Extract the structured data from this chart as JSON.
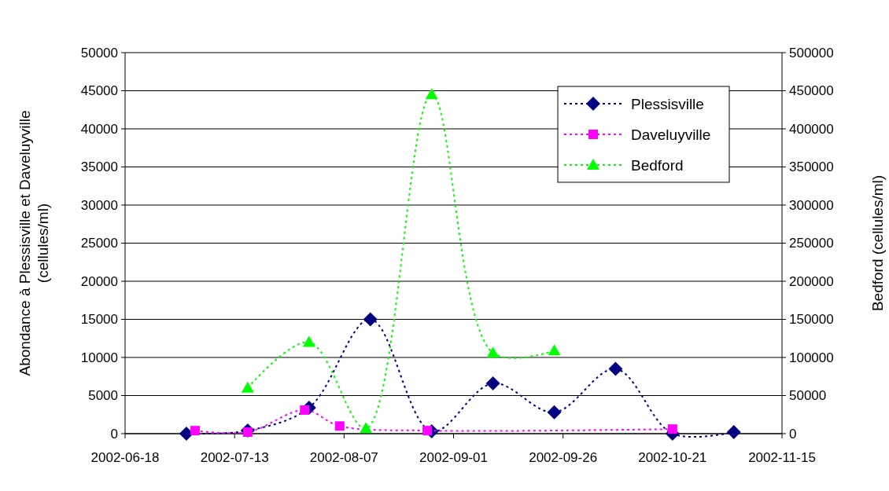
{
  "chart_data": {
    "type": "line",
    "ylabel": "Abondance à Plessisville et Daveluyville (cellules/ml)",
    "y2label": "Bedford (cellules/ml)",
    "xlim": [
      "2002-06-18",
      "2002-11-15"
    ],
    "xticks": [
      "2002-06-18",
      "2002-07-13",
      "2002-08-07",
      "2002-09-01",
      "2002-09-26",
      "2002-10-21",
      "2002-11-15"
    ],
    "ylim": [
      0,
      50000
    ],
    "yticks": [
      0,
      5000,
      10000,
      15000,
      20000,
      25000,
      30000,
      35000,
      40000,
      45000,
      50000
    ],
    "y2lim": [
      0,
      500000
    ],
    "y2ticks": [
      0,
      50000,
      100000,
      150000,
      200000,
      250000,
      300000,
      350000,
      400000,
      450000,
      500000
    ],
    "grid": "y",
    "legend": "top right",
    "line_style": "dotted",
    "series": [
      {
        "name": "Plessisville",
        "color": "#000080",
        "marker": "diamond",
        "x": [
          "2002-07-02",
          "2002-07-16",
          "2002-07-30",
          "2002-08-13",
          "2002-08-27",
          "2002-09-10",
          "2002-09-24",
          "2002-10-08",
          "2002-10-21",
          "2002-11-04"
        ],
        "values": [
          0,
          400,
          3400,
          15000,
          300,
          6600,
          2800,
          8500,
          0,
          200
        ]
      },
      {
        "name": "Daveluyville",
        "color": "#ff00ff",
        "marker": "square",
        "x": [
          "2002-07-04",
          "2002-07-16",
          "2002-07-29",
          "2002-08-06",
          "2002-08-26",
          "2002-10-21"
        ],
        "values": [
          400,
          200,
          3100,
          1000,
          400,
          600
        ]
      },
      {
        "name": "Bedford",
        "color": "#00ff00",
        "marker": "triangle",
        "axis": "y2",
        "x": [
          "2002-07-16",
          "2002-07-30",
          "2002-08-12",
          "2002-08-27",
          "2002-09-10",
          "2002-09-24"
        ],
        "values": [
          60000,
          120000,
          7000,
          445000,
          106000,
          109000
        ]
      }
    ]
  }
}
